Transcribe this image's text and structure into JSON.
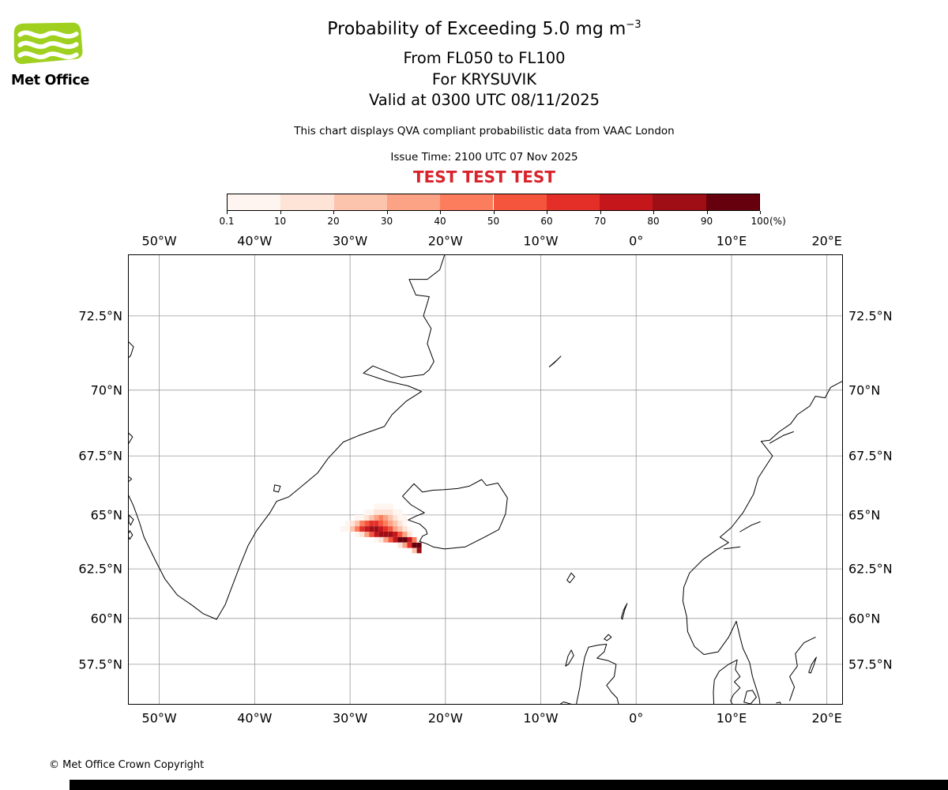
{
  "logo": {
    "brand": "Met Office",
    "color": "#9fd020"
  },
  "header": {
    "title_main": "Probability of Exceeding 5.0 mg m",
    "title_sup": "−3",
    "subtitle_levels": "From FL050 to FL100",
    "subtitle_volcano": "For KRYSUVIK",
    "subtitle_valid": "Valid at 0300 UTC 08/11/2025",
    "note": "This chart displays QVA compliant probabilistic data from VAAC London",
    "issue_time": "Issue Time: 2100 UTC 07 Nov 2025",
    "test_banner": "TEST TEST TEST",
    "test_color": "#d8232a"
  },
  "colorbar": {
    "colors": [
      "#fff5f0",
      "#fee3d7",
      "#fcc4ad",
      "#fca285",
      "#fb7d5d",
      "#f5553d",
      "#e32f27",
      "#c5161c",
      "#9f0e15",
      "#67000d"
    ],
    "tick_labels": [
      "0.1",
      "10",
      "20",
      "30",
      "40",
      "50",
      "60",
      "70",
      "80",
      "90",
      "100"
    ],
    "unit_label": "(%)"
  },
  "map": {
    "projection": "mercator",
    "lon_min": -53.2,
    "lon_max": 21.6,
    "lat_min": 55.2,
    "lat_max": 74.32,
    "grid_color": "#9a9a9a",
    "coast_color": "#000000",
    "lon_ticks": [
      {
        "lon": -50,
        "label": "50°W"
      },
      {
        "lon": -40,
        "label": "40°W"
      },
      {
        "lon": -30,
        "label": "30°W"
      },
      {
        "lon": -20,
        "label": "20°W"
      },
      {
        "lon": -10,
        "label": "10°W"
      },
      {
        "lon": 0,
        "label": "0°"
      },
      {
        "lon": 10,
        "label": "10°E"
      },
      {
        "lon": 20,
        "label": "20°E"
      }
    ],
    "lat_ticks": [
      {
        "lat": 72.5,
        "label": "72.5°N"
      },
      {
        "lat": 70,
        "label": "70°N"
      },
      {
        "lat": 67.5,
        "label": "67.5°N"
      },
      {
        "lat": 65,
        "label": "65°N"
      },
      {
        "lat": 62.5,
        "label": "62.5°N"
      },
      {
        "lat": 60,
        "label": "60°N"
      },
      {
        "lat": 57.5,
        "label": "57.5°N"
      }
    ],
    "coastlines": [
      [
        [
          -20.0,
          74.4
        ],
        [
          -20.6,
          73.9
        ],
        [
          -21.9,
          73.62
        ],
        [
          -23.8,
          73.62
        ],
        [
          -23.1,
          73.15
        ],
        [
          -21.7,
          73.1
        ],
        [
          -22.3,
          72.5
        ],
        [
          -21.5,
          72.1
        ],
        [
          -21.9,
          71.6
        ],
        [
          -21.2,
          71.0
        ],
        [
          -21.7,
          70.72
        ],
        [
          -22.3,
          70.55
        ],
        [
          -24.6,
          70.45
        ],
        [
          -27.6,
          70.85
        ],
        [
          -28.6,
          70.6
        ],
        [
          -26.1,
          70.32
        ],
        [
          -23.9,
          70.15
        ],
        [
          -22.5,
          69.95
        ],
        [
          -24.1,
          69.6
        ],
        [
          -25.6,
          69.1
        ],
        [
          -26.4,
          68.65
        ],
        [
          -29.1,
          68.3
        ],
        [
          -30.7,
          68.05
        ],
        [
          -32.3,
          67.4
        ],
        [
          -33.4,
          66.8
        ],
        [
          -34.9,
          66.3
        ],
        [
          -36.4,
          65.8
        ],
        [
          -37.7,
          65.6
        ],
        [
          -38.4,
          65.1
        ],
        [
          -39.8,
          64.3
        ],
        [
          -40.7,
          63.6
        ],
        [
          -41.5,
          62.7
        ],
        [
          -42.4,
          61.6
        ],
        [
          -43.1,
          60.7
        ],
        [
          -44.0,
          59.95
        ],
        [
          -45.4,
          60.25
        ],
        [
          -46.6,
          60.7
        ],
        [
          -48.1,
          61.2
        ],
        [
          -49.4,
          62.0
        ],
        [
          -50.4,
          62.9
        ],
        [
          -51.6,
          64.0
        ],
        [
          -52.1,
          64.7
        ],
        [
          -52.7,
          65.4
        ],
        [
          -53.5,
          66.1
        ]
      ],
      [
        [
          -53.5,
          71.75
        ],
        [
          -52.7,
          71.5
        ],
        [
          -53.0,
          71.2
        ],
        [
          -53.5,
          71.05
        ]
      ],
      [
        [
          -53.5,
          68.5
        ],
        [
          -52.8,
          68.25
        ],
        [
          -53.2,
          68.0
        ],
        [
          -53.5,
          67.85
        ]
      ],
      [
        [
          -53.5,
          66.75
        ],
        [
          -52.9,
          66.55
        ],
        [
          -53.5,
          66.35
        ]
      ],
      [
        [
          -53.2,
          65.0
        ],
        [
          -52.7,
          64.8
        ],
        [
          -53.0,
          64.55
        ],
        [
          -53.2,
          64.7
        ],
        [
          -53.2,
          65.0
        ]
      ],
      [
        [
          -53.1,
          64.3
        ],
        [
          -52.8,
          64.1
        ],
        [
          -53.1,
          63.9
        ],
        [
          -53.3,
          64.1
        ],
        [
          -53.1,
          64.3
        ]
      ],
      [
        [
          -37.9,
          66.3
        ],
        [
          -37.3,
          66.25
        ],
        [
          -37.5,
          66.0
        ],
        [
          -38.0,
          66.05
        ],
        [
          -37.9,
          66.3
        ]
      ],
      [
        [
          -22.7,
          63.8
        ],
        [
          -22.4,
          64.05
        ],
        [
          -21.9,
          64.15
        ],
        [
          -22.05,
          64.35
        ],
        [
          -22.7,
          64.6
        ],
        [
          -23.9,
          64.78
        ],
        [
          -23.1,
          64.95
        ],
        [
          -22.2,
          65.1
        ],
        [
          -23.6,
          65.45
        ],
        [
          -24.5,
          65.82
        ],
        [
          -23.3,
          66.35
        ],
        [
          -22.4,
          66.0
        ],
        [
          -21.3,
          66.08
        ],
        [
          -20.2,
          66.1
        ],
        [
          -18.7,
          66.15
        ],
        [
          -17.5,
          66.25
        ],
        [
          -16.2,
          66.53
        ],
        [
          -15.7,
          66.28
        ],
        [
          -14.5,
          66.38
        ],
        [
          -13.5,
          65.75
        ],
        [
          -13.7,
          65.05
        ],
        [
          -14.4,
          64.35
        ],
        [
          -15.9,
          64.0
        ],
        [
          -17.9,
          63.55
        ],
        [
          -20.1,
          63.45
        ],
        [
          -21.3,
          63.55
        ],
        [
          -22.0,
          63.7
        ],
        [
          -22.7,
          63.8
        ]
      ],
      [
        [
          -9.1,
          70.82
        ],
        [
          -8.3,
          71.05
        ],
        [
          -7.9,
          71.18
        ],
        [
          -8.6,
          70.95
        ],
        [
          -9.1,
          70.82
        ]
      ],
      [
        [
          21.8,
          70.35
        ],
        [
          20.4,
          70.1
        ],
        [
          19.8,
          69.72
        ],
        [
          18.8,
          69.78
        ],
        [
          18.2,
          69.42
        ],
        [
          16.9,
          69.1
        ],
        [
          16.2,
          68.75
        ],
        [
          15.0,
          68.45
        ],
        [
          14.0,
          68.12
        ],
        [
          13.1,
          68.08
        ],
        [
          14.3,
          67.5
        ],
        [
          13.8,
          67.2
        ],
        [
          12.8,
          66.6
        ],
        [
          12.3,
          65.9
        ],
        [
          11.2,
          65.1
        ],
        [
          10.0,
          64.45
        ],
        [
          8.8,
          64.0
        ],
        [
          9.7,
          63.75
        ],
        [
          8.4,
          63.4
        ],
        [
          7.0,
          62.95
        ],
        [
          5.6,
          62.3
        ],
        [
          5.0,
          61.6
        ],
        [
          4.9,
          60.9
        ],
        [
          5.3,
          60.1
        ],
        [
          5.4,
          59.3
        ],
        [
          6.1,
          58.5
        ],
        [
          7.1,
          58.05
        ],
        [
          8.6,
          58.2
        ],
        [
          9.7,
          59.0
        ],
        [
          10.5,
          59.85
        ],
        [
          10.9,
          59.0
        ],
        [
          11.2,
          58.4
        ],
        [
          11.9,
          57.6
        ],
        [
          12.2,
          56.8
        ],
        [
          12.6,
          56.1
        ],
        [
          12.9,
          55.55
        ],
        [
          13.0,
          55.1
        ]
      ],
      [
        [
          14.0,
          68.0
        ],
        [
          15.4,
          68.3
        ],
        [
          16.5,
          68.45
        ]
      ],
      [
        [
          10.9,
          64.25
        ],
        [
          12.1,
          64.55
        ],
        [
          13.0,
          64.7
        ]
      ],
      [
        [
          9.2,
          63.45
        ],
        [
          10.9,
          63.55
        ]
      ],
      [
        [
          8.15,
          55.1
        ],
        [
          8.1,
          55.9
        ],
        [
          8.2,
          56.6
        ],
        [
          8.7,
          57.1
        ],
        [
          9.7,
          57.5
        ],
        [
          10.6,
          57.75
        ],
        [
          10.4,
          57.2
        ],
        [
          10.9,
          56.8
        ],
        [
          10.3,
          56.5
        ],
        [
          10.9,
          56.15
        ],
        [
          10.2,
          55.75
        ],
        [
          9.9,
          55.4
        ],
        [
          10.15,
          55.1
        ]
      ],
      [
        [
          11.6,
          55.95
        ],
        [
          12.2,
          56.0
        ],
        [
          12.6,
          55.6
        ],
        [
          12.0,
          55.2
        ],
        [
          11.3,
          55.3
        ],
        [
          11.6,
          55.95
        ]
      ],
      [
        [
          -6.3,
          55.1
        ],
        [
          -5.9,
          56.2
        ],
        [
          -5.7,
          57.0
        ],
        [
          -5.4,
          57.9
        ],
        [
          -5.0,
          58.45
        ],
        [
          -4.0,
          58.57
        ],
        [
          -3.1,
          58.62
        ],
        [
          -3.35,
          58.2
        ],
        [
          -4.1,
          57.85
        ],
        [
          -2.9,
          57.7
        ],
        [
          -2.1,
          57.5
        ],
        [
          -2.3,
          56.8
        ],
        [
          -3.1,
          56.3
        ],
        [
          -2.6,
          55.9
        ],
        [
          -2.0,
          55.55
        ],
        [
          -1.8,
          55.1
        ]
      ],
      [
        [
          -7.4,
          57.4
        ],
        [
          -7.15,
          57.95
        ],
        [
          -6.8,
          58.3
        ],
        [
          -6.55,
          58.0
        ],
        [
          -7.1,
          57.5
        ],
        [
          -7.4,
          57.4
        ]
      ],
      [
        [
          -3.35,
          58.9
        ],
        [
          -2.9,
          59.15
        ],
        [
          -2.6,
          59.0
        ],
        [
          -3.05,
          58.82
        ],
        [
          -3.35,
          58.9
        ]
      ],
      [
        [
          -1.45,
          59.95
        ],
        [
          -1.2,
          60.45
        ],
        [
          -0.95,
          60.78
        ],
        [
          -1.3,
          60.45
        ],
        [
          -1.55,
          60.05
        ],
        [
          -1.45,
          59.95
        ]
      ],
      [
        [
          -7.25,
          61.95
        ],
        [
          -6.8,
          62.3
        ],
        [
          -6.45,
          62.12
        ],
        [
          -6.95,
          61.82
        ],
        [
          -7.25,
          61.95
        ]
      ],
      [
        [
          -8.2,
          55.1
        ],
        [
          -7.6,
          55.32
        ],
        [
          -6.9,
          55.2
        ],
        [
          -6.4,
          55.1
        ]
      ],
      [
        [
          16.1,
          55.4
        ],
        [
          16.6,
          56.2
        ],
        [
          16.1,
          56.8
        ],
        [
          16.9,
          57.4
        ],
        [
          16.7,
          58.1
        ],
        [
          17.6,
          58.7
        ],
        [
          18.8,
          59.0
        ]
      ],
      [
        [
          18.1,
          57.05
        ],
        [
          18.4,
          57.5
        ],
        [
          18.9,
          57.9
        ],
        [
          18.6,
          57.4
        ],
        [
          18.3,
          57.0
        ],
        [
          18.1,
          57.05
        ]
      ],
      [
        [
          14.7,
          55.25
        ],
        [
          15.1,
          55.3
        ],
        [
          15.2,
          55.1
        ]
      ]
    ],
    "plume": {
      "cell_dlon": 0.5,
      "cell_dlat": 0.25,
      "rows": [
        {
          "lat": 65.5,
          "lon": -27.5,
          "values": [
            1,
            1,
            5,
            1
          ]
        },
        {
          "lat": 65.25,
          "lon": -28.5,
          "values": [
            1,
            5,
            10,
            15,
            15,
            10,
            5,
            1
          ]
        },
        {
          "lat": 65.0,
          "lon": -29.5,
          "values": [
            1,
            5,
            15,
            25,
            35,
            40,
            35,
            25,
            15,
            5,
            1
          ]
        },
        {
          "lat": 64.75,
          "lon": -30.5,
          "values": [
            1,
            10,
            25,
            45,
            55,
            60,
            60,
            55,
            45,
            35,
            25,
            15,
            5
          ]
        },
        {
          "lat": 64.5,
          "lon": -31.0,
          "values": [
            1,
            5,
            20,
            45,
            65,
            75,
            80,
            80,
            70,
            60,
            50,
            35,
            20,
            10,
            5
          ]
        },
        {
          "lat": 64.25,
          "lon": -29.5,
          "values": [
            5,
            15,
            35,
            55,
            75,
            85,
            85,
            80,
            70,
            55,
            35,
            15
          ]
        },
        {
          "lat": 64.0,
          "lon": -27.5,
          "values": [
            5,
            15,
            35,
            55,
            75,
            95,
            95,
            75,
            45
          ]
        },
        {
          "lat": 63.75,
          "lon": -25.0,
          "values": [
            10,
            30,
            60,
            95,
            100
          ]
        },
        {
          "lat": 63.5,
          "lon": -23.5,
          "values": [
            25,
            85
          ]
        }
      ]
    }
  },
  "footer": {
    "copyright": "© Met Office Crown Copyright"
  }
}
